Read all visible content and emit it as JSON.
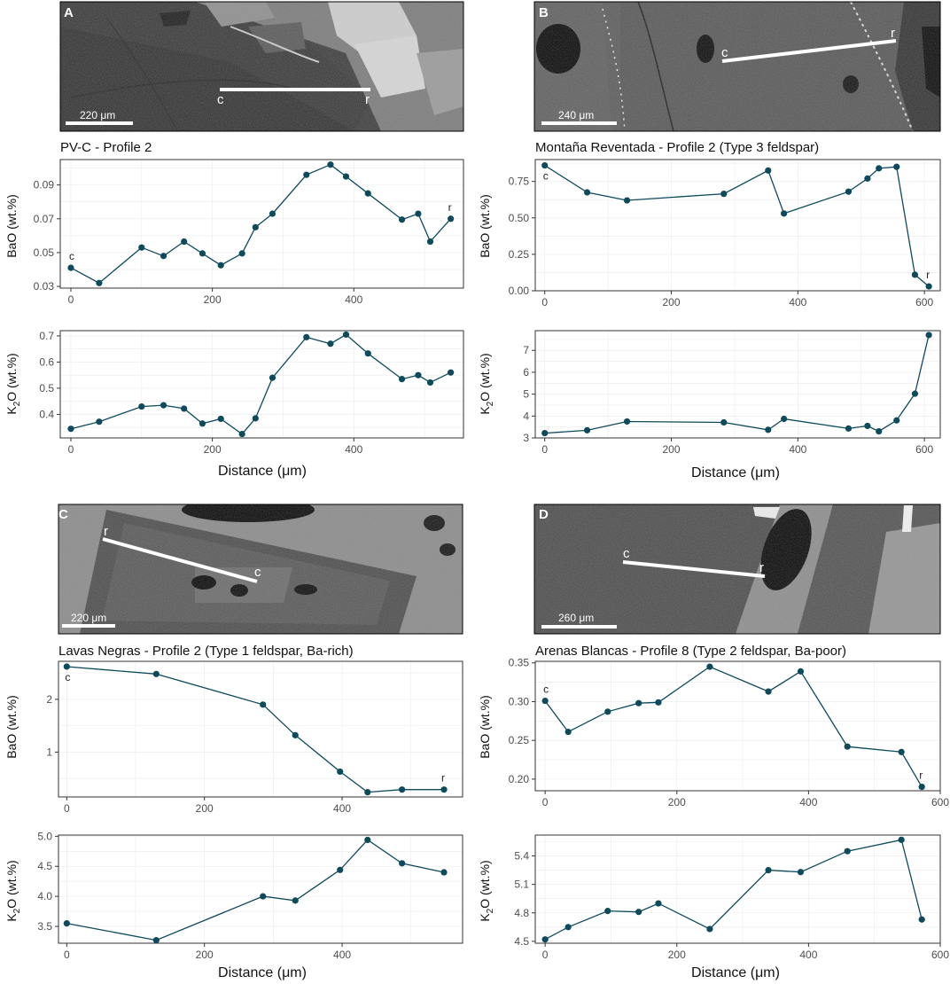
{
  "panels": [
    {
      "id": "A",
      "image": {
        "label": "A",
        "scale_text": "220 μm",
        "line_start_label": "c",
        "line_end_label": "r"
      },
      "title": "PV-C - Profile 2",
      "x_title": "Distance (μm)",
      "top_axis_title": "BaO (wt.%)",
      "bottom_axis_title": "K2O  (wt.%)"
    },
    {
      "id": "B",
      "image": {
        "label": "B",
        "scale_text": "240 μm",
        "line_start_label": "c",
        "line_end_label": "r"
      },
      "title": "Montaña Reventada - Profile 2 (Type 3 feldspar)",
      "x_title": "Distance (μm)",
      "top_axis_title": "BaO (wt.%)",
      "bottom_axis_title": "K2O  (wt.%)"
    },
    {
      "id": "C",
      "image": {
        "label": "C",
        "scale_text": "220 μm",
        "line_start_label": "r",
        "line_end_label": "c"
      },
      "title": "Lavas Negras - Profile 2 (Type 1 feldspar, Ba-rich)",
      "x_title": "Distance (μm)",
      "top_axis_title": "BaO (wt.%)",
      "bottom_axis_title": "K2O  (wt.%)"
    },
    {
      "id": "D",
      "image": {
        "label": "D",
        "scale_text": "260 μm",
        "line_start_label": "c",
        "line_end_label": "r"
      },
      "title": "Arenas Blancas - Profile 8 (Type 2 feldspar, Ba-poor)",
      "x_title": "Distance (μm)",
      "top_axis_title": "BaO (wt.%)",
      "bottom_axis_title": "K2O  (wt.%)"
    }
  ],
  "chart_data": [
    {
      "type": "line",
      "panel": "A",
      "ylabel": "BaO (wt.%)",
      "x": [
        0,
        40,
        100,
        131,
        160,
        186,
        212,
        242,
        261,
        285,
        333,
        367,
        389,
        420,
        468,
        491,
        508,
        537
      ],
      "y": [
        0.041,
        0.032,
        0.053,
        0.048,
        0.0565,
        0.0495,
        0.0425,
        0.0495,
        0.065,
        0.073,
        0.096,
        0.102,
        0.095,
        0.085,
        0.0695,
        0.073,
        0.0565,
        0.07
      ],
      "xlim": [
        -15,
        555
      ],
      "ylim": [
        0.029,
        0.105
      ],
      "xticks": [
        0,
        200,
        400
      ],
      "yticks": [
        0.03,
        0.05,
        0.07,
        0.09
      ],
      "ytick_labels": [
        "0.03",
        "0.05",
        "0.07",
        "0.09"
      ],
      "annotations": [
        {
          "index": 0,
          "text": "c"
        },
        {
          "index": 17,
          "text": "r"
        }
      ]
    },
    {
      "type": "line",
      "panel": "A",
      "ylabel": "K2O (wt.%)",
      "x": [
        0,
        40,
        100,
        131,
        160,
        186,
        212,
        242,
        261,
        285,
        333,
        367,
        389,
        420,
        468,
        491,
        508,
        537
      ],
      "y": [
        0.345,
        0.372,
        0.43,
        0.435,
        0.422,
        0.365,
        0.383,
        0.325,
        0.385,
        0.54,
        0.695,
        0.67,
        0.705,
        0.633,
        0.535,
        0.55,
        0.522,
        0.56
      ],
      "xlim": [
        -15,
        555
      ],
      "ylim": [
        0.31,
        0.72
      ],
      "xticks": [
        0,
        200,
        400
      ],
      "yticks": [
        0.4,
        0.5,
        0.6,
        0.7
      ],
      "ytick_labels": [
        "0.4",
        "0.5",
        "0.6",
        "0.7"
      ],
      "annotations": []
    },
    {
      "type": "line",
      "panel": "B",
      "ylabel": "BaO (wt.%)",
      "x": [
        0,
        67,
        130,
        283,
        353,
        378,
        480,
        510,
        528,
        556,
        585,
        607
      ],
      "y": [
        0.86,
        0.675,
        0.62,
        0.665,
        0.825,
        0.53,
        0.68,
        0.77,
        0.84,
        0.85,
        0.11,
        0.03
      ],
      "xlim": [
        -15,
        625
      ],
      "ylim": [
        0.0,
        0.9
      ],
      "xticks": [
        0,
        200,
        400,
        600
      ],
      "yticks": [
        0.0,
        0.25,
        0.5,
        0.75
      ],
      "ytick_labels": [
        "0.00",
        "0.25",
        "0.50",
        "0.75"
      ],
      "annotations": [
        {
          "index": 0,
          "text": "c"
        },
        {
          "index": 11,
          "text": "r"
        }
      ]
    },
    {
      "type": "line",
      "panel": "B",
      "ylabel": "K2O (wt.%)",
      "x": [
        0,
        67,
        130,
        283,
        353,
        378,
        480,
        510,
        528,
        556,
        585,
        607
      ],
      "y": [
        3.22,
        3.35,
        3.75,
        3.71,
        3.37,
        3.87,
        3.43,
        3.55,
        3.3,
        3.8,
        5.02,
        7.7
      ],
      "xlim": [
        -15,
        625
      ],
      "ylim": [
        3.0,
        7.9
      ],
      "xticks": [
        0,
        200,
        400,
        600
      ],
      "yticks": [
        3,
        4,
        5,
        6,
        7
      ],
      "ytick_labels": [
        "3",
        "4",
        "5",
        "6",
        "7"
      ],
      "annotations": []
    },
    {
      "type": "line",
      "panel": "C",
      "ylabel": "BaO (wt.%)",
      "x": [
        0,
        130,
        285,
        332,
        397,
        437,
        487,
        548
      ],
      "y": [
        2.62,
        2.48,
        1.9,
        1.32,
        0.63,
        0.24,
        0.29,
        0.29
      ],
      "xlim": [
        -12,
        575
      ],
      "ylim": [
        0.15,
        2.72
      ],
      "xticks": [
        0,
        200,
        400
      ],
      "yticks": [
        1,
        2
      ],
      "ytick_labels": [
        "1",
        "2"
      ],
      "annotations": [
        {
          "index": 0,
          "text": "c"
        },
        {
          "index": 7,
          "text": "r"
        }
      ]
    },
    {
      "type": "line",
      "panel": "C",
      "ylabel": "K2O (wt.%)",
      "x": [
        0,
        130,
        285,
        332,
        397,
        437,
        487,
        548
      ],
      "y": [
        3.55,
        3.27,
        4.0,
        3.93,
        4.44,
        4.94,
        4.55,
        4.4
      ],
      "xlim": [
        -12,
        575
      ],
      "ylim": [
        3.22,
        5.02
      ],
      "xticks": [
        0,
        200,
        400
      ],
      "yticks": [
        3.5,
        4.0,
        4.5,
        5.0
      ],
      "ytick_labels": [
        "3.5",
        "4.0",
        "4.5",
        "5.0"
      ],
      "annotations": []
    },
    {
      "type": "line",
      "panel": "D",
      "ylabel": "BaO (wt.%)",
      "x": [
        0,
        35,
        95,
        142,
        172,
        250,
        339,
        388,
        459,
        541,
        572
      ],
      "y": [
        0.301,
        0.261,
        0.287,
        0.298,
        0.299,
        0.345,
        0.313,
        0.339,
        0.242,
        0.235,
        0.19
      ],
      "xlim": [
        -15,
        600
      ],
      "ylim": [
        0.185,
        0.352
      ],
      "xticks": [
        0,
        200,
        400,
        600
      ],
      "yticks": [
        0.2,
        0.25,
        0.3,
        0.35
      ],
      "ytick_labels": [
        "0.20",
        "0.25",
        "0.30",
        "0.35"
      ],
      "annotations": [
        {
          "index": 0,
          "text": "c"
        },
        {
          "index": 10,
          "text": "r"
        }
      ]
    },
    {
      "type": "line",
      "panel": "D",
      "ylabel": "K2O (wt.%)",
      "x": [
        0,
        35,
        95,
        142,
        172,
        250,
        339,
        388,
        459,
        541,
        572
      ],
      "y": [
        4.52,
        4.65,
        4.82,
        4.81,
        4.9,
        4.63,
        5.25,
        5.23,
        5.45,
        5.57,
        4.73
      ],
      "xlim": [
        -15,
        600
      ],
      "ylim": [
        4.48,
        5.62
      ],
      "xticks": [
        0,
        200,
        400,
        600
      ],
      "yticks": [
        4.5,
        4.8,
        5.1,
        5.4
      ],
      "ytick_labels": [
        "4.5",
        "4.8",
        "5.1",
        "5.4"
      ],
      "annotations": []
    }
  ]
}
